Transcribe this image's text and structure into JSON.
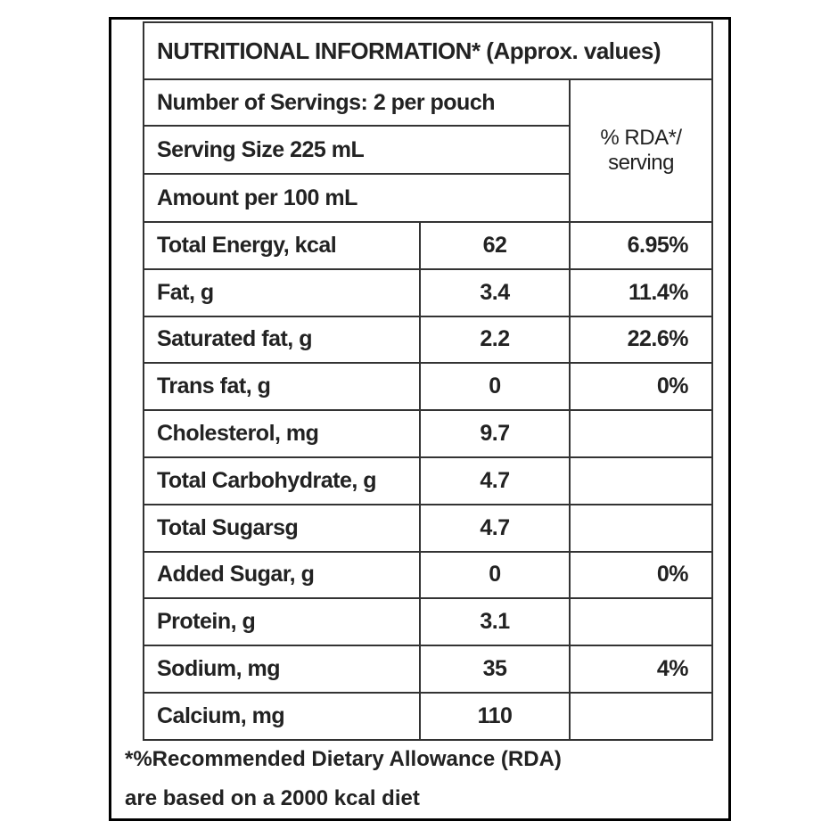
{
  "header": {
    "title": "NUTRITIONAL INFORMATION* (Approx. values)",
    "servings": "Number of Servings: 2 per pouch",
    "serving_size": "Serving Size 225 mL",
    "amount_per": "Amount per 100 mL",
    "rda_heading": [
      "% RDA*/",
      "serving"
    ]
  },
  "table": {
    "rows": [
      {
        "name": "Total Energy, kcal",
        "amount": "62",
        "rda": "6.95%"
      },
      {
        "name": "Fat, g",
        "amount": "3.4",
        "rda": "11.4%"
      },
      {
        "name": "Saturated fat, g",
        "amount": "2.2",
        "rda": "22.6%"
      },
      {
        "name": "Trans fat, g",
        "amount": "0",
        "rda": "0%"
      },
      {
        "name": "Cholesterol, mg",
        "amount": "9.7"
      },
      {
        "name": "Total Carbohydrate, g",
        "amount": "4.7"
      },
      {
        "name": "Total Sugarsg",
        "amount": "4.7"
      },
      {
        "name": "Added Sugar, g",
        "amount": "0",
        "rda": "0%"
      },
      {
        "name": "Protein, g",
        "amount": "3.1"
      },
      {
        "name": "Sodium, mg",
        "amount": "35",
        "rda": "4%"
      },
      {
        "name": "Calcium, mg",
        "amount": "110"
      }
    ]
  },
  "footnote": [
    "*%Recommended Dietary Allowance (RDA)",
    "are based on a 2000 kcal diet"
  ]
}
